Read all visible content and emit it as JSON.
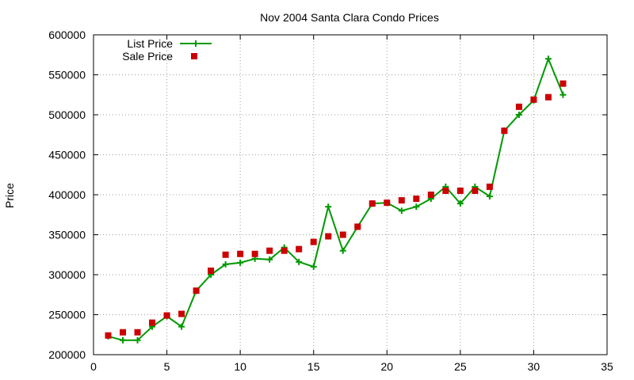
{
  "chart_data": {
    "type": "line",
    "title": "Nov 2004 Santa Clara Condo Prices",
    "xlabel": "",
    "ylabel": "Price",
    "xlim": [
      0,
      35
    ],
    "ylim": [
      200000,
      600000
    ],
    "xticks": [
      0,
      5,
      10,
      15,
      20,
      25,
      30,
      35
    ],
    "yticks": [
      200000,
      250000,
      300000,
      350000,
      400000,
      450000,
      500000,
      550000,
      600000
    ],
    "grid": true,
    "legend_position": "top-left",
    "series": [
      {
        "name": "List Price",
        "style": "line-with-plus-markers",
        "color": "#009900",
        "x": [
          1,
          2,
          3,
          4,
          5,
          6,
          7,
          8,
          9,
          10,
          11,
          12,
          13,
          14,
          15,
          16,
          17,
          18,
          19,
          20,
          21,
          22,
          23,
          24,
          25,
          26,
          27,
          28,
          29,
          30,
          31,
          32
        ],
        "values": [
          223000,
          218000,
          218000,
          235000,
          248000,
          235000,
          280000,
          300000,
          313000,
          315000,
          320000,
          319000,
          334000,
          316000,
          310000,
          385000,
          330000,
          360000,
          389000,
          390000,
          380000,
          385000,
          395000,
          410000,
          389000,
          410000,
          398000,
          480000,
          500000,
          518000,
          570000,
          525000
        ]
      },
      {
        "name": "Sale Price",
        "style": "square-markers",
        "color": "#cc0000",
        "x": [
          1,
          2,
          3,
          4,
          5,
          6,
          7,
          8,
          9,
          10,
          11,
          12,
          13,
          14,
          15,
          16,
          17,
          18,
          19,
          20,
          21,
          22,
          23,
          24,
          25,
          26,
          27,
          28,
          29,
          30,
          31,
          32
        ],
        "values": [
          224000,
          228000,
          228000,
          240000,
          249000,
          251000,
          280000,
          305000,
          325000,
          326000,
          326000,
          330000,
          330000,
          332000,
          341000,
          348000,
          350000,
          360000,
          389000,
          390000,
          393000,
          395000,
          400000,
          405000,
          405000,
          405000,
          410000,
          480000,
          510000,
          519000,
          522000,
          539000
        ]
      }
    ]
  }
}
